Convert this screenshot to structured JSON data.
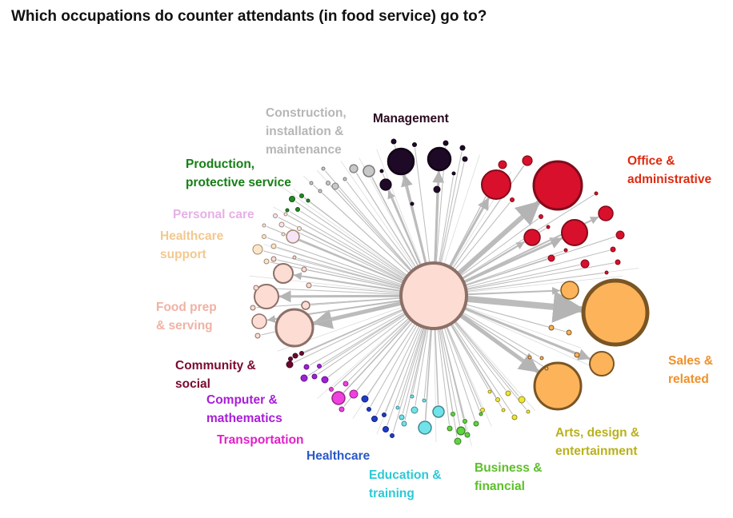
{
  "title": "Which occupations do counter attendants (in food service) go to?",
  "center_node": {
    "group": "Food prep & serving",
    "fill": "#fcdcd3",
    "stroke": "#8c7068"
  },
  "categories": [
    {
      "id": "management",
      "lines": [
        "Management"
      ],
      "color": "#2a0a20",
      "fill": "#1e0926"
    },
    {
      "id": "office",
      "lines": [
        "Office &",
        "administrative"
      ],
      "color": "#e02a10",
      "fill": "#d8102c"
    },
    {
      "id": "sales",
      "lines": [
        "Sales &",
        "related"
      ],
      "color": "#f0902a",
      "fill": "#fdb35a"
    },
    {
      "id": "arts",
      "lines": [
        "Arts, design &",
        "entertainment"
      ],
      "color": "#b9b11a",
      "fill": "#f0e63a"
    },
    {
      "id": "business",
      "lines": [
        "Business &",
        "financial"
      ],
      "color": "#5cbf2a",
      "fill": "#5ed440"
    },
    {
      "id": "education",
      "lines": [
        "Education &",
        "training"
      ],
      "color": "#2cc9d6",
      "fill": "#6fe3ea"
    },
    {
      "id": "healthcare",
      "lines": [
        "Healthcare"
      ],
      "color": "#2a58c8",
      "fill": "#1e3cc8"
    },
    {
      "id": "transportation",
      "lines": [
        "Transportation"
      ],
      "color": "#e020c8",
      "fill": "#f040e0"
    },
    {
      "id": "computer",
      "lines": [
        "Computer &",
        "mathematics"
      ],
      "color": "#a81ed8",
      "fill": "#a020d8"
    },
    {
      "id": "community",
      "lines": [
        "Community &",
        "social"
      ],
      "color": "#7a0a30",
      "fill": "#6a0830"
    },
    {
      "id": "foodprep",
      "lines": [
        "Food prep",
        "& serving"
      ],
      "color": "#f0b2a4",
      "fill": "#fcdcd3"
    },
    {
      "id": "hcsupport",
      "lines": [
        "Healthcare",
        "support"
      ],
      "color": "#f2c890",
      "fill": "#fde6c8"
    },
    {
      "id": "personal",
      "lines": [
        "Personal care"
      ],
      "color": "#e6b0e6",
      "fill": "#f8e4f8"
    },
    {
      "id": "production",
      "lines": [
        "Production,",
        "protective service"
      ],
      "color": "#157f15",
      "fill": "#1f8c1f"
    },
    {
      "id": "construction",
      "lines": [
        "Construction,",
        "installation &",
        "maintenance"
      ],
      "color": "#b6b6b6",
      "fill": "#c8c8c8"
    }
  ]
}
